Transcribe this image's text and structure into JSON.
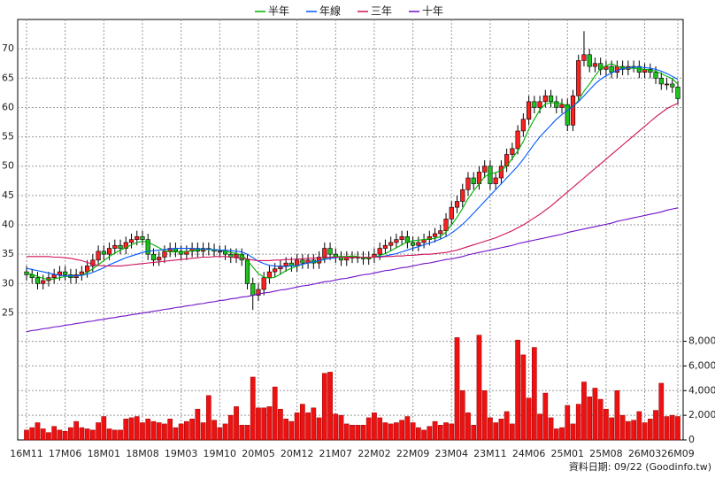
{
  "chart_data": {
    "type": "candlestick",
    "categories": [
      "16M11",
      null,
      null,
      null,
      null,
      null,
      null,
      "17M06",
      null,
      null,
      null,
      null,
      null,
      null,
      "18M01",
      null,
      null,
      null,
      null,
      null,
      null,
      "18M08",
      null,
      null,
      null,
      null,
      null,
      null,
      "19M03",
      null,
      null,
      null,
      null,
      null,
      null,
      "19M10",
      null,
      null,
      null,
      null,
      null,
      null,
      "20M05",
      null,
      null,
      null,
      null,
      null,
      null,
      "20M12",
      null,
      null,
      null,
      null,
      null,
      null,
      "21M07",
      null,
      null,
      null,
      null,
      null,
      null,
      "22M02",
      null,
      null,
      null,
      null,
      null,
      null,
      "22M09",
      null,
      null,
      null,
      null,
      null,
      null,
      "23M04",
      null,
      null,
      null,
      null,
      null,
      null,
      "23M11",
      null,
      null,
      null,
      null,
      null,
      null,
      "24M06",
      null,
      null,
      null,
      null,
      null,
      null,
      "25M01",
      null,
      null,
      null,
      null,
      null,
      null,
      "25M08",
      null,
      null,
      null,
      null,
      null,
      null,
      "26M03",
      null,
      null,
      null,
      null,
      null,
      "26M09"
    ],
    "open": [
      32,
      31.5,
      31,
      30,
      30.5,
      31,
      31.5,
      32,
      31.5,
      31,
      31.5,
      32,
      33,
      34,
      35.5,
      35,
      36,
      36.5,
      36,
      37,
      37.5,
      38,
      37.5,
      35,
      34,
      34.5,
      35.5,
      36,
      35.5,
      35,
      35.5,
      36,
      35.5,
      36,
      35.8,
      35.5,
      35.5,
      35,
      34.5,
      35,
      34,
      30,
      28,
      29,
      31,
      32,
      32.5,
      33,
      33.5,
      33,
      34,
      33.5,
      34,
      33.5,
      34.5,
      36,
      35,
      34.5,
      34,
      34.5,
      34.5,
      34.5,
      34.2,
      34.5,
      35,
      36,
      36.5,
      37,
      37.5,
      38,
      37,
      36.5,
      37,
      37.5,
      38,
      38.5,
      39,
      41,
      43,
      44,
      46,
      48,
      47,
      49,
      50,
      47,
      48,
      50,
      52,
      53,
      56,
      58,
      61,
      60,
      61,
      62,
      61,
      60,
      60.5,
      57,
      62,
      68,
      69,
      67,
      67.5,
      66.5,
      67,
      66,
      67,
      66.5,
      67,
      67,
      66,
      66.5,
      66,
      65,
      64,
      64,
      63.5
    ],
    "high": [
      33,
      32.5,
      32,
      31.5,
      32,
      32.5,
      33,
      33,
      32.5,
      32.5,
      33,
      34,
      35,
      36.5,
      36.5,
      37,
      37.5,
      37.5,
      38,
      38.5,
      39,
      39,
      38.5,
      36,
      35.5,
      36.5,
      37,
      37,
      36.5,
      36.5,
      37,
      37,
      37,
      37,
      36.8,
      36.5,
      36.5,
      36,
      36,
      36,
      35,
      31,
      30,
      32,
      33,
      33.5,
      34,
      34.5,
      34.5,
      35,
      35,
      35,
      35,
      35.5,
      37,
      37,
      36,
      35.5,
      35.5,
      35.5,
      35.5,
      35.5,
      35.5,
      36,
      37,
      37.5,
      38,
      38.5,
      39,
      39,
      38,
      38,
      38.5,
      39,
      39.5,
      40,
      42,
      44,
      45,
      47,
      49,
      49,
      50,
      51,
      51,
      49,
      51,
      53,
      54,
      57,
      59,
      62,
      62,
      62,
      63,
      63,
      62,
      61.5,
      61.5,
      63,
      69,
      73,
      70,
      68.5,
      68.5,
      68,
      68,
      68,
      68,
      68,
      68,
      68,
      67.5,
      67.5,
      67,
      66,
      65,
      65,
      64.5
    ],
    "low": [
      30.5,
      30,
      29,
      29,
      29.5,
      30,
      30.5,
      30.5,
      30,
      30,
      30.5,
      31,
      32,
      33,
      34,
      34,
      35,
      35,
      35,
      36,
      36.5,
      36.5,
      34,
      33,
      33,
      33.5,
      34.5,
      34.5,
      34,
      34,
      34.5,
      34.5,
      34.5,
      34.8,
      34.5,
      34.5,
      34,
      33.5,
      33.5,
      33,
      29,
      25.5,
      27,
      28,
      30,
      31,
      31.5,
      32,
      32,
      32,
      32.5,
      32.5,
      32.5,
      32.5,
      33.5,
      34,
      33.5,
      33,
      33,
      33.5,
      33.5,
      33.2,
      33.2,
      33.5,
      34,
      35,
      35.5,
      36,
      36.5,
      36,
      35.5,
      35.5,
      36,
      36.5,
      37,
      37.5,
      38,
      40,
      42,
      43,
      45,
      46,
      46,
      48,
      46,
      46,
      47,
      49,
      51,
      52,
      55,
      57,
      59,
      59,
      60,
      60,
      59,
      59,
      56,
      56,
      61,
      67,
      66,
      66,
      65.5,
      65.5,
      65,
      65,
      65.5,
      65.5,
      66,
      65,
      65,
      65,
      64,
      63,
      63,
      62.5,
      60.5
    ],
    "close": [
      31.5,
      31,
      30,
      30.5,
      31,
      31.5,
      32,
      31.5,
      31,
      31.5,
      32,
      33,
      34,
      35.5,
      35,
      36,
      36.5,
      36,
      37,
      37.5,
      38,
      37.5,
      35,
      34,
      34.5,
      35.5,
      36,
      35.5,
      35,
      35.5,
      36,
      35.5,
      36,
      35.8,
      35.5,
      35.5,
      35,
      34.5,
      35,
      34,
      30,
      28,
      29,
      31,
      32,
      32.5,
      33,
      33.5,
      33,
      34,
      33.5,
      34,
      33.5,
      34.5,
      36,
      35,
      34.5,
      34,
      34.5,
      34.5,
      34.5,
      34.2,
      34.5,
      35,
      36,
      36.5,
      37,
      37.5,
      38,
      37,
      36.5,
      37,
      37.5,
      38,
      38.5,
      39,
      41,
      43,
      44,
      46,
      48,
      47,
      49,
      50,
      47,
      48,
      50,
      52,
      53,
      56,
      58,
      61,
      60,
      61,
      62,
      61,
      60,
      60.5,
      57,
      62,
      68,
      69,
      67,
      67.5,
      66.5,
      67,
      66,
      67,
      66.5,
      67,
      67,
      66,
      66.5,
      66,
      65,
      64,
      64,
      63.5,
      61.5
    ],
    "up_color": "#ff2020",
    "down_color": "#20c020",
    "ylim": [
      21,
      75
    ],
    "yticks": [
      25,
      30,
      35,
      40,
      45,
      50,
      55,
      60,
      65,
      70
    ],
    "grid": true,
    "legend": "top",
    "series": [
      {
        "name": "半年",
        "color": "#00b000",
        "values": [
          31.8,
          31.6,
          31.2,
          30.9,
          30.7,
          30.8,
          31.0,
          31.2,
          31.2,
          31.3,
          31.5,
          31.9,
          32.5,
          33.2,
          33.9,
          34.6,
          35.2,
          35.7,
          36.1,
          36.6,
          37.0,
          37.2,
          37.0,
          36.6,
          36.1,
          35.6,
          35.4,
          35.4,
          35.4,
          35.5,
          35.6,
          35.7,
          35.8,
          35.8,
          35.8,
          35.7,
          35.5,
          35.3,
          35.1,
          34.9,
          34.0,
          32.8,
          31.7,
          31.1,
          30.9,
          31.1,
          31.6,
          32.2,
          32.6,
          33.0,
          33.3,
          33.5,
          33.6,
          33.8,
          34.3,
          34.5,
          34.6,
          34.6,
          34.6,
          34.7,
          34.6,
          34.4,
          34.4,
          34.5,
          34.8,
          35.1,
          35.6,
          36.1,
          36.6,
          37.1,
          37.3,
          37.4,
          37.5,
          37.6,
          37.7,
          38.0,
          38.8,
          40.0,
          41.3,
          42.8,
          44.5,
          45.8,
          47.0,
          48.2,
          48.7,
          48.9,
          49.3,
          50.0,
          51.3,
          52.6,
          54.2,
          56.3,
          58.0,
          59.6,
          60.6,
          60.8,
          60.8,
          60.7,
          60.1,
          60.1,
          61.2,
          62.8,
          64.0,
          65.4,
          66.6,
          67.1,
          67.5,
          67.0,
          66.8,
          66.7,
          66.7,
          66.6,
          66.5,
          66.4,
          66.2,
          65.8,
          65.3,
          64.9,
          64.0
        ]
      },
      {
        "name": "年線",
        "color": "#0058ff",
        "values": [
          32.6,
          32.4,
          32.2,
          32.0,
          31.8,
          31.6,
          31.4,
          31.3,
          31.3,
          31.3,
          31.4,
          31.6,
          31.9,
          32.3,
          32.7,
          33.2,
          33.6,
          34.0,
          34.4,
          34.7,
          35.0,
          35.3,
          35.5,
          35.6,
          35.7,
          35.8,
          35.9,
          36.0,
          36.0,
          36.0,
          36.0,
          35.9,
          35.9,
          35.8,
          35.8,
          35.7,
          35.7,
          35.6,
          35.5,
          35.4,
          35.0,
          34.4,
          33.8,
          33.4,
          33.1,
          33.0,
          32.9,
          32.9,
          33.0,
          33.1,
          33.3,
          33.5,
          33.7,
          33.9,
          34.1,
          34.3,
          34.4,
          34.5,
          34.5,
          34.5,
          34.5,
          34.5,
          34.5,
          34.5,
          34.6,
          34.7,
          34.9,
          35.1,
          35.4,
          35.7,
          36.0,
          36.3,
          36.6,
          36.9,
          37.2,
          37.6,
          38.0,
          38.6,
          39.3,
          40.1,
          41.0,
          42.0,
          43.0,
          44.0,
          45.0,
          46.0,
          47.0,
          48.0,
          49.0,
          50.0,
          51.2,
          52.5,
          53.8,
          55.0,
          56.0,
          57.0,
          58.0,
          58.8,
          59.5,
          60.2,
          61.0,
          62.0,
          63.0,
          64.0,
          64.8,
          65.4,
          65.9,
          66.3,
          66.6,
          66.8,
          66.9,
          66.9,
          66.8,
          66.7,
          66.5,
          66.2,
          65.8,
          65.3,
          64.8
        ]
      },
      {
        "name": "三年",
        "color": "#d0105a",
        "values": [
          34.6,
          34.6,
          34.6,
          34.6,
          34.6,
          34.5,
          34.5,
          34.4,
          34.3,
          34.1,
          33.9,
          33.6,
          33.3,
          33.1,
          33.0,
          33.0,
          33.0,
          33.0,
          33.1,
          33.2,
          33.3,
          33.4,
          33.5,
          33.6,
          33.7,
          33.8,
          33.9,
          34.0,
          34.1,
          34.2,
          34.3,
          34.4,
          34.5,
          34.5,
          34.6,
          34.6,
          34.6,
          34.5,
          34.4,
          34.3,
          34.2,
          34.0,
          33.9,
          33.9,
          33.9,
          34.0,
          34.0,
          34.1,
          34.1,
          34.2,
          34.2,
          34.3,
          34.3,
          34.4,
          34.4,
          34.5,
          34.5,
          34.5,
          34.5,
          34.5,
          34.5,
          34.5,
          34.5,
          34.5,
          34.5,
          34.6,
          34.6,
          34.7,
          34.7,
          34.8,
          34.8,
          34.9,
          35.0,
          35.0,
          35.1,
          35.2,
          35.3,
          35.5,
          35.7,
          36.0,
          36.3,
          36.6,
          36.9,
          37.2,
          37.5,
          37.8,
          38.2,
          38.6,
          39.0,
          39.5,
          40.0,
          40.6,
          41.2,
          41.8,
          42.5,
          43.2,
          44.0,
          44.8,
          45.6,
          46.4,
          47.2,
          48.0,
          48.8,
          49.6,
          50.4,
          51.2,
          52.0,
          52.8,
          53.6,
          54.4,
          55.2,
          56.0,
          56.8,
          57.6,
          58.4,
          59.1,
          59.8,
          60.3,
          60.7
        ]
      },
      {
        "name": "十年",
        "color": "#7010c8",
        "values": [
          21.8,
          22.0,
          22.1,
          22.3,
          22.4,
          22.6,
          22.7,
          22.9,
          23.0,
          23.2,
          23.3,
          23.5,
          23.6,
          23.8,
          23.9,
          24.1,
          24.2,
          24.4,
          24.5,
          24.7,
          24.8,
          25.0,
          25.1,
          25.3,
          25.4,
          25.6,
          25.7,
          25.9,
          26.0,
          26.2,
          26.3,
          26.5,
          26.6,
          26.8,
          26.9,
          27.1,
          27.2,
          27.4,
          27.5,
          27.7,
          27.8,
          28.0,
          28.2,
          28.4,
          28.5,
          28.7,
          28.9,
          29.0,
          29.2,
          29.4,
          29.6,
          29.7,
          29.9,
          30.1,
          30.3,
          30.4,
          30.6,
          30.8,
          30.9,
          31.1,
          31.3,
          31.5,
          31.6,
          31.8,
          32.0,
          32.2,
          32.3,
          32.5,
          32.7,
          32.8,
          33.0,
          33.2,
          33.4,
          33.5,
          33.7,
          33.9,
          34.1,
          34.2,
          34.4,
          34.6,
          34.9,
          35.1,
          35.3,
          35.5,
          35.7,
          35.9,
          36.1,
          36.3,
          36.5,
          36.8,
          37.0,
          37.2,
          37.4,
          37.6,
          37.8,
          38.0,
          38.2,
          38.4,
          38.7,
          38.9,
          39.1,
          39.3,
          39.5,
          39.7,
          39.9,
          40.1,
          40.3,
          40.6,
          40.8,
          41.0,
          41.2,
          41.4,
          41.6,
          41.8,
          42.0,
          42.2,
          42.5,
          42.7,
          42.9
        ]
      }
    ],
    "volume": {
      "type": "bar",
      "color": "#ee1111",
      "values": [
        800,
        1000,
        1400,
        900,
        600,
        1100,
        800,
        700,
        1000,
        1500,
        1000,
        900,
        800,
        1400,
        1900,
        900,
        800,
        800,
        1700,
        1800,
        1900,
        1400,
        1700,
        1500,
        1400,
        1300,
        1700,
        1000,
        1300,
        1500,
        1700,
        2500,
        1400,
        3600,
        1600,
        1000,
        1300,
        2000,
        2700,
        1200,
        1200,
        5100,
        2600,
        2600,
        2700,
        4300,
        2500,
        1700,
        1500,
        2200,
        2900,
        2200,
        2600,
        1800,
        5400,
        5500,
        2100,
        2000,
        1300,
        1200,
        1200,
        1200,
        1800,
        2200,
        1800,
        1400,
        1300,
        1400,
        1600,
        1900,
        1400,
        1000,
        800,
        1100,
        1500,
        1200,
        1400,
        1300,
        8300,
        4000,
        2200,
        1200,
        8500,
        4000,
        1800,
        1400,
        1700,
        2300,
        1300,
        8100,
        6900,
        3400,
        7500,
        2100,
        3800,
        1800,
        900,
        1000,
        2800,
        1300,
        2900,
        4700,
        3500,
        4200,
        3300,
        2500,
        1800,
        4000,
        2000,
        1500,
        1600,
        2300,
        1400,
        1700,
        2400,
        4600,
        1900,
        2000,
        1900
      ],
      "ylim": [
        0,
        8400
      ],
      "yticks": [
        0,
        {
          "value": 2000,
          "label": "2,000"
        },
        {
          "value": 4000,
          "label": "4,000"
        },
        {
          "value": 6000,
          "label": "6,000"
        },
        {
          "value": 8000,
          "label": "8,000"
        }
      ]
    },
    "source": "資料日期: 09/22 (Goodinfo.tw)"
  }
}
